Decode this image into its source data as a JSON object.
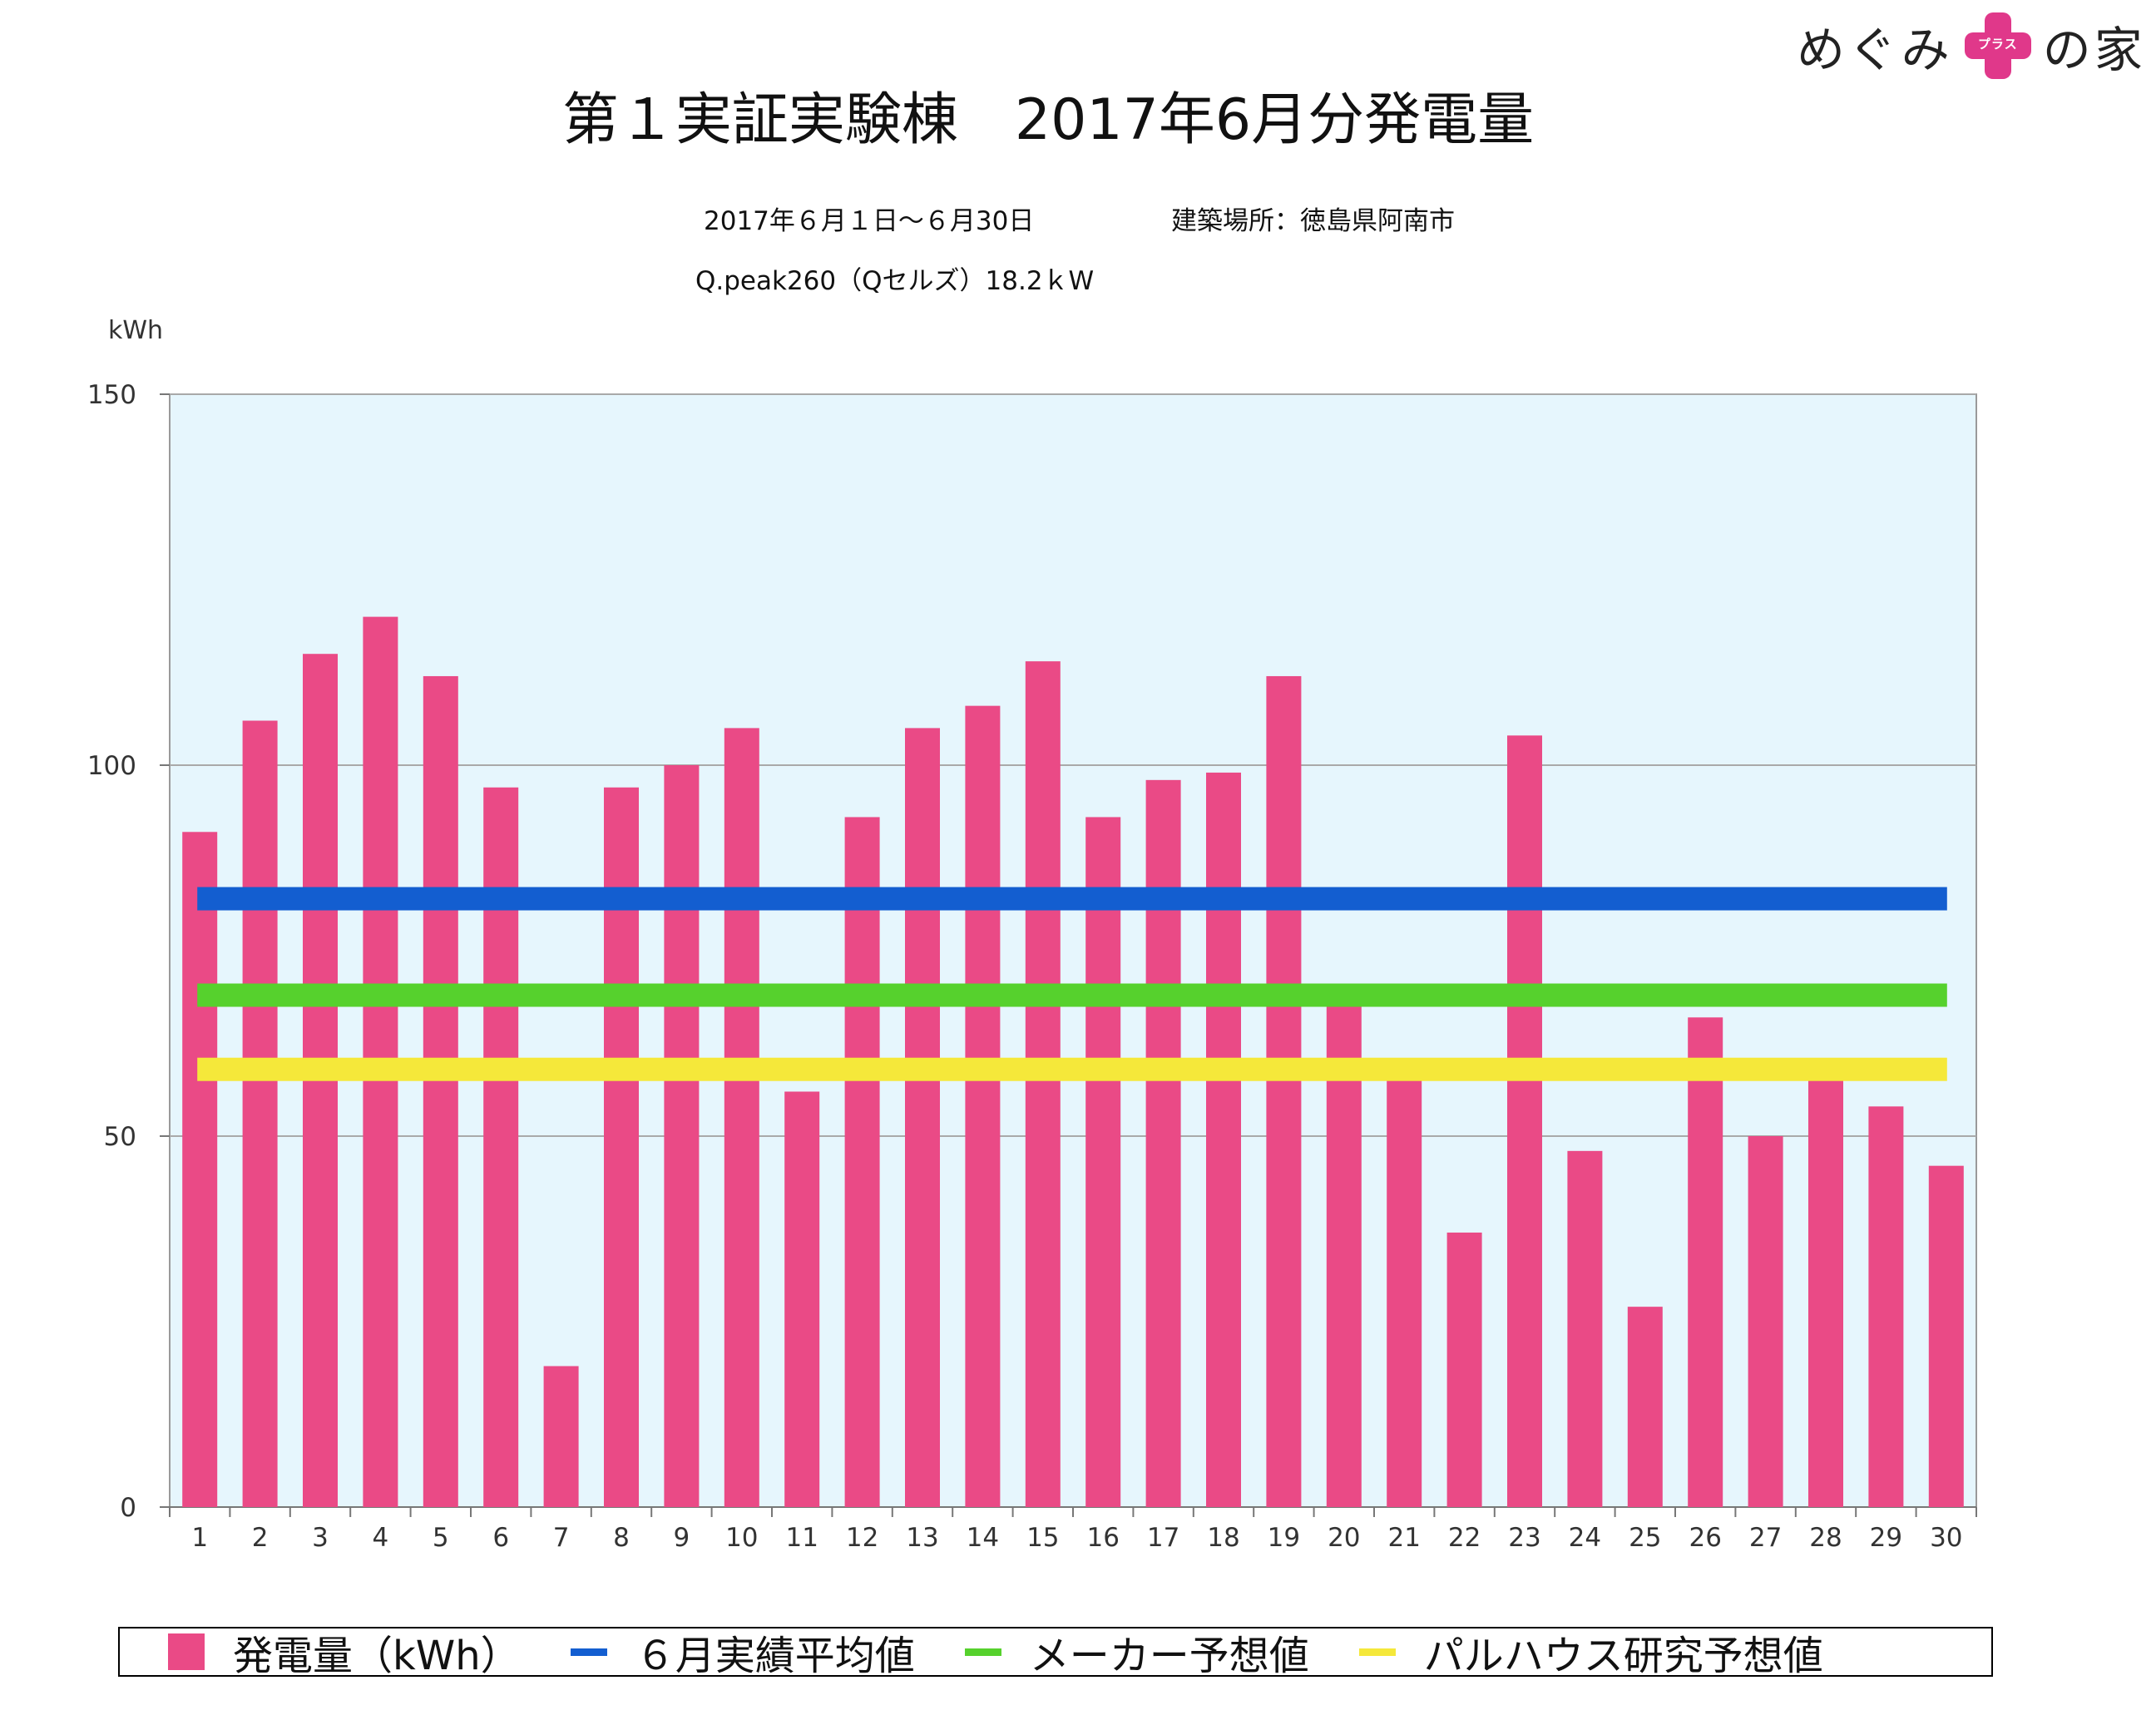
{
  "logo": {
    "text_left": "めぐみ",
    "plus_text": "プラス",
    "text_right": "の家",
    "accent": "#e0388a"
  },
  "title": "第１実証実験棟　2017年6月分発電量",
  "subtitle": {
    "period": "2017年６月１日〜６月30日",
    "location": "建築場所：徳島県阿南市",
    "system": "Q.peak260（Qセルズ）18.2ｋW"
  },
  "chart_data": {
    "type": "bar",
    "ylabel": "kWh",
    "ylim": [
      0,
      150
    ],
    "yticks": [
      0,
      50,
      100,
      150
    ],
    "grid": true,
    "background": "#e6f6fd",
    "categories": [
      "1",
      "2",
      "3",
      "4",
      "5",
      "6",
      "7",
      "8",
      "9",
      "10",
      "11",
      "12",
      "13",
      "14",
      "15",
      "16",
      "17",
      "18",
      "19",
      "20",
      "21",
      "22",
      "23",
      "24",
      "25",
      "26",
      "27",
      "28",
      "29",
      "30"
    ],
    "series": [
      {
        "name": "発電量（kWh）",
        "type": "bar",
        "color": "#ea4a86",
        "values": [
          91,
          106,
          115,
          120,
          112,
          97,
          19,
          97,
          100,
          105,
          56,
          93,
          105,
          108,
          114,
          93,
          98,
          99,
          112,
          68,
          59,
          37,
          104,
          48,
          27,
          66,
          50,
          58,
          54,
          46
        ]
      },
      {
        "name": "６月実績平均値",
        "type": "hline",
        "color": "#135ed0",
        "value": 82
      },
      {
        "name": "メーカー予想値",
        "type": "hline",
        "color": "#56d12d",
        "value": 69
      },
      {
        "name": "パルハウス研究予想値",
        "type": "hline",
        "color": "#f5e83a",
        "value": 59
      }
    ],
    "legend_position": "bottom"
  }
}
